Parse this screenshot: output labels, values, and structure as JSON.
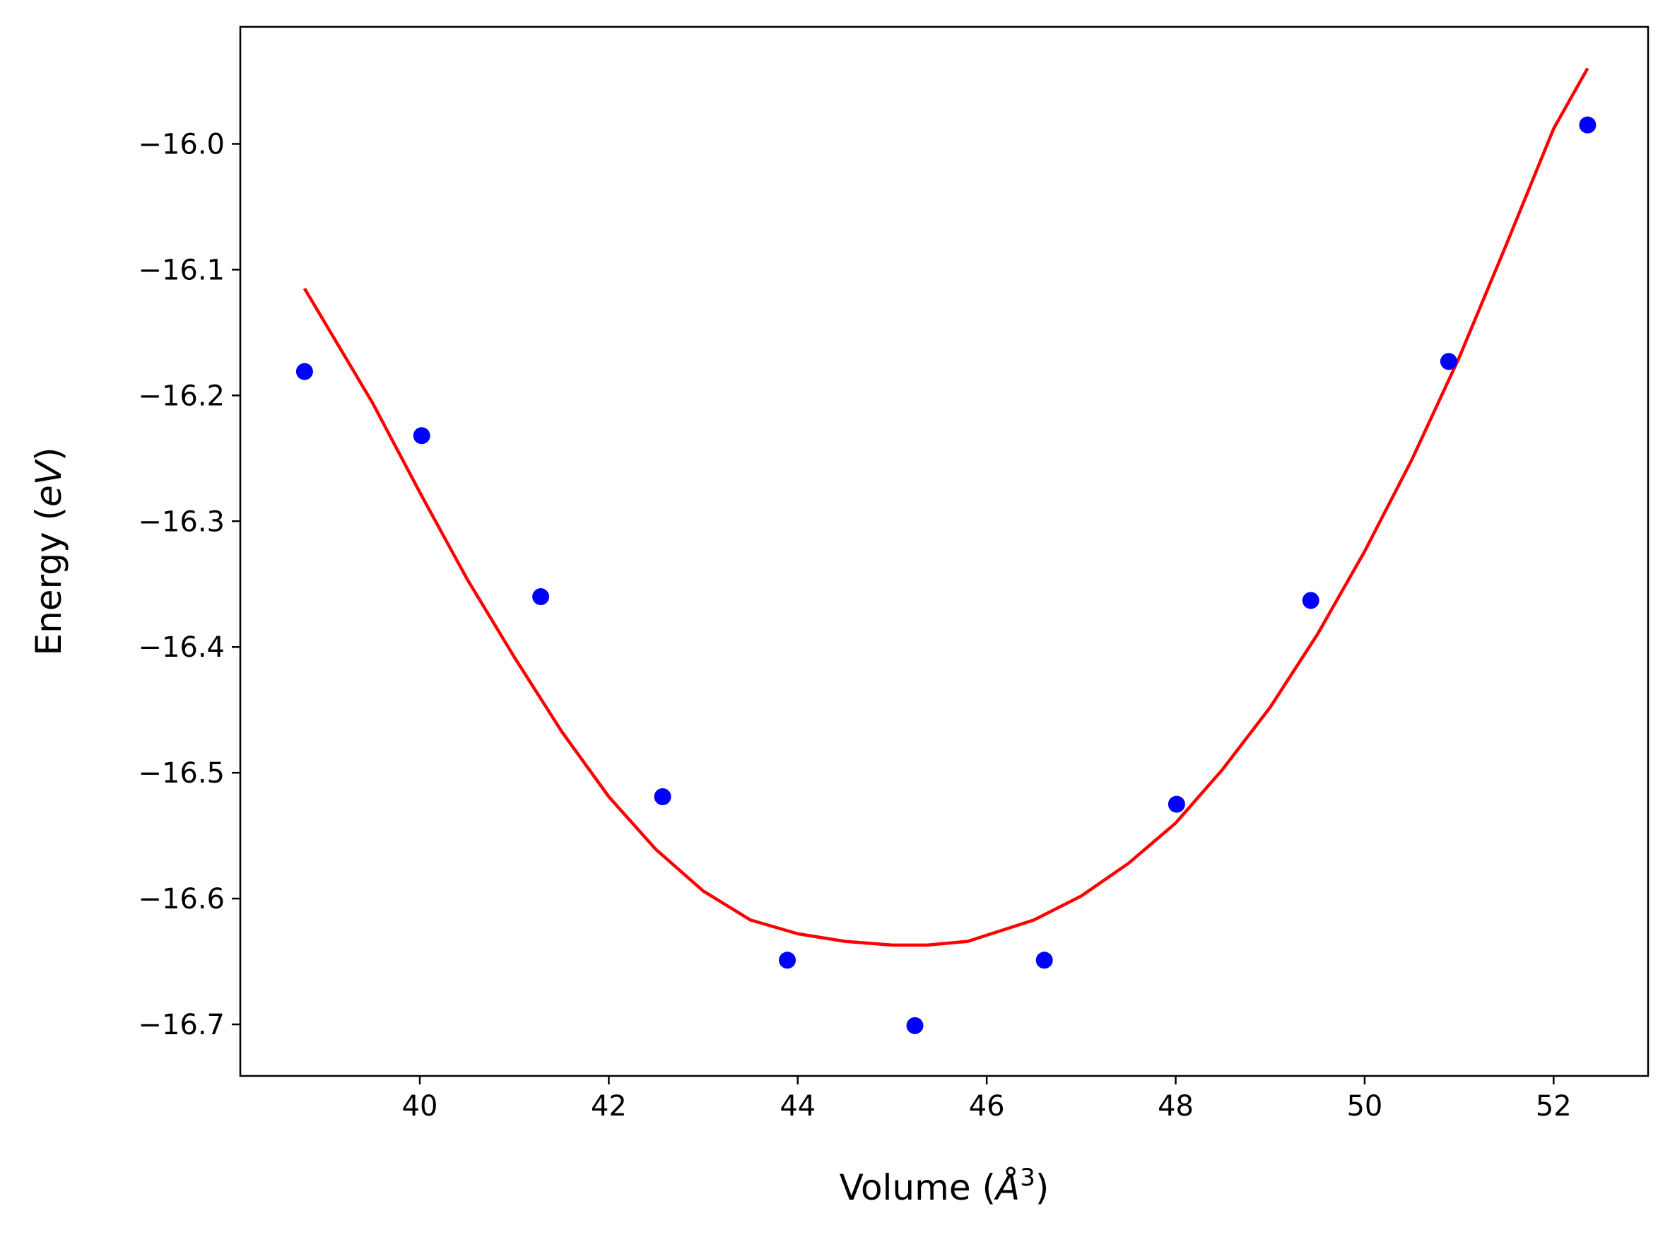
{
  "chart_data": {
    "type": "scatter",
    "title": "",
    "xlabel_main": "Volume (",
    "xlabel_unit": "Å",
    "xlabel_exp": "3",
    "xlabel_close": ")",
    "ylabel_main": "Energy (",
    "ylabel_unit": "eV",
    "ylabel_close": ")",
    "xlim": [
      38.1,
      53.0
    ],
    "ylim": [
      -16.741,
      -15.907
    ],
    "x_ticks": [
      40,
      42,
      44,
      46,
      48,
      50,
      52
    ],
    "x_tick_labels": [
      "40",
      "42",
      "44",
      "46",
      "48",
      "50",
      "52"
    ],
    "y_ticks": [
      -16.0,
      -16.1,
      -16.2,
      -16.3,
      -16.4,
      -16.5,
      -16.6,
      -16.7
    ],
    "y_tick_labels": [
      "−16.0",
      "−16.1",
      "−16.2",
      "−16.3",
      "−16.4",
      "−16.5",
      "−16.6",
      "−16.7"
    ],
    "grid": false,
    "series": [
      {
        "kind": "points",
        "color": "#0000ff",
        "x": [
          38.78,
          40.02,
          41.28,
          42.57,
          43.89,
          45.24,
          46.61,
          48.01,
          49.43,
          50.89,
          52.36
        ],
        "y": [
          -16.181,
          -16.232,
          -16.36,
          -16.519,
          -16.649,
          -16.701,
          -16.649,
          -16.525,
          -16.363,
          -16.173,
          -15.985
        ]
      },
      {
        "kind": "line",
        "color": "#ff0000",
        "x": [
          38.78,
          39.5,
          40.0,
          40.5,
          41.0,
          41.5,
          42.0,
          42.5,
          43.0,
          43.5,
          44.0,
          44.5,
          45.0,
          45.37,
          45.8,
          46.5,
          47.0,
          47.5,
          48.0,
          48.5,
          49.0,
          49.5,
          50.0,
          50.5,
          51.0,
          51.5,
          52.0,
          52.36
        ],
        "y": [
          -16.115,
          -16.206,
          -16.277,
          -16.346,
          -16.408,
          -16.467,
          -16.519,
          -16.561,
          -16.594,
          -16.617,
          -16.628,
          -16.634,
          -16.637,
          -16.637,
          -16.634,
          -16.617,
          -16.598,
          -16.572,
          -16.54,
          -16.497,
          -16.448,
          -16.39,
          -16.324,
          -16.251,
          -16.17,
          -16.08,
          -15.988,
          -15.94
        ]
      }
    ]
  }
}
